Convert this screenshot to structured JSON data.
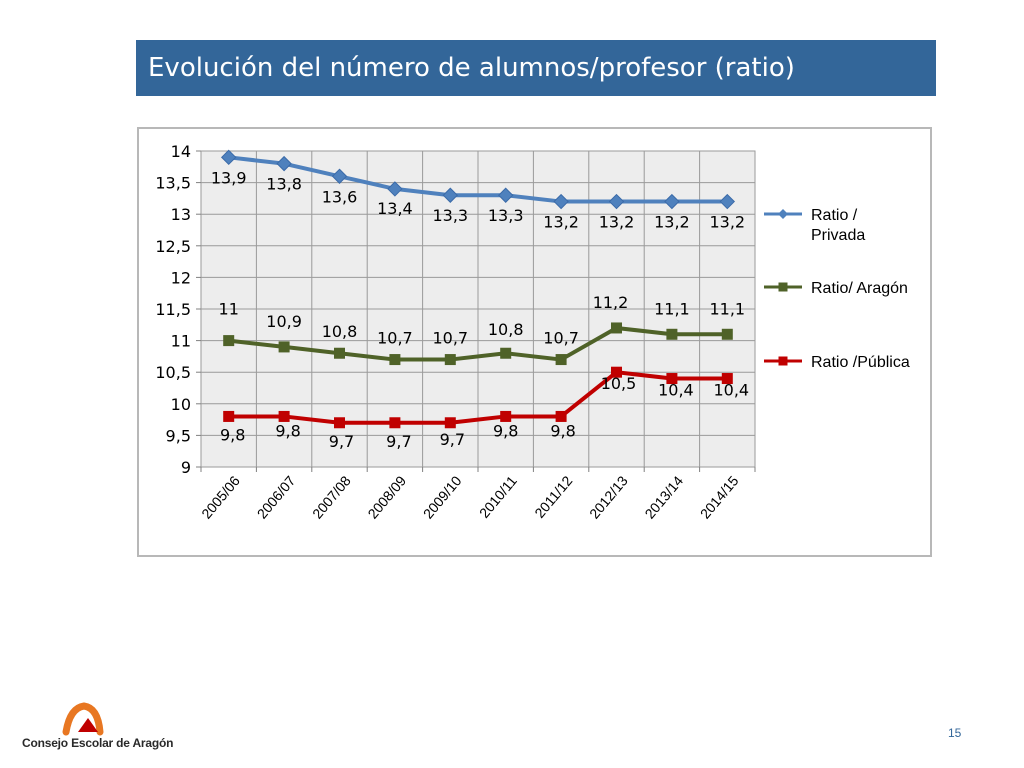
{
  "header": {
    "title": "Evolución del número de alumnos/profesor (ratio)"
  },
  "footer": {
    "organization": "Consejo Escolar de Aragón",
    "page_number": "15"
  },
  "chart_data": {
    "type": "line",
    "categories": [
      "2005/06",
      "2006/07",
      "2007/08",
      "2008/09",
      "2009/10",
      "2010/11",
      "2011/12",
      "2012/13",
      "2013/14",
      "2014/15"
    ],
    "ylim": [
      9,
      14
    ],
    "yticks": [
      "9",
      "9,5",
      "10",
      "10,5",
      "11",
      "11,5",
      "12",
      "12,5",
      "13",
      "13,5",
      "14"
    ],
    "grid": true,
    "legend_position": "right",
    "series": [
      {
        "name": "Ratio / Privada",
        "legend_lines": [
          "Ratio /",
          "Privada"
        ],
        "color": "#4f81bd",
        "marker": "diamond",
        "values": [
          13.9,
          13.8,
          13.6,
          13.4,
          13.3,
          13.3,
          13.2,
          13.2,
          13.2,
          13.2
        ],
        "labels": [
          "13,9",
          "13,8",
          "13,6",
          "13,4",
          "13,3",
          "13,3",
          "13,2",
          "13,2",
          "13,2",
          "13,2"
        ]
      },
      {
        "name": "Ratio/ Aragón",
        "legend_lines": [
          "Ratio/ Aragón"
        ],
        "color": "#4f6228",
        "marker": "square",
        "values": [
          11,
          10.9,
          10.8,
          10.7,
          10.7,
          10.8,
          10.7,
          11.2,
          11.1,
          11.1
        ],
        "labels": [
          "11",
          "10,9",
          "10,8",
          "10,7",
          "10,7",
          "10,8",
          "10,7",
          "11,2",
          "11,1",
          "11,1"
        ]
      },
      {
        "name": "Ratio /Pública",
        "legend_lines": [
          "Ratio /Pública"
        ],
        "color": "#c00000",
        "marker": "square",
        "values": [
          9.8,
          9.8,
          9.7,
          9.7,
          9.7,
          9.8,
          9.8,
          10.5,
          10.4,
          10.4
        ],
        "labels": [
          "9,8",
          "9,8",
          "9,7",
          "9,7",
          "9,7",
          "9,8",
          "9,8",
          "10,5",
          "10,4",
          "10,4"
        ]
      }
    ]
  }
}
